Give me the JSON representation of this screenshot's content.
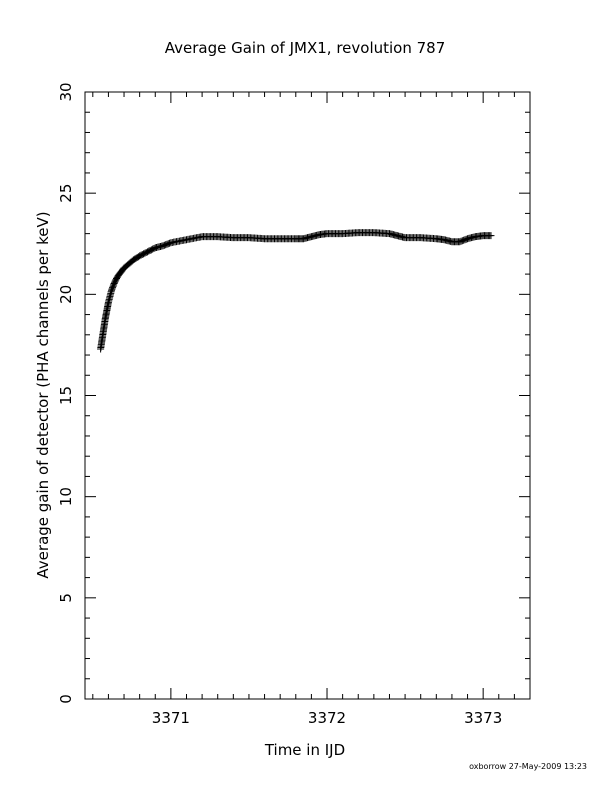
{
  "chart_data": {
    "type": "scatter",
    "title": "Average Gain of JMX1, revolution 787",
    "xlabel": "Time in IJD",
    "ylabel": "Average gain of detector (PHA channels per keV)",
    "xlim": [
      3370.45,
      3373.3
    ],
    "ylim": [
      0,
      30
    ],
    "x_ticks": [
      "3371",
      "3372",
      "3373"
    ],
    "y_ticks": [
      "0",
      "5",
      "10",
      "15",
      "20",
      "25",
      "30"
    ],
    "grid": false,
    "legend": "none",
    "marker": "+",
    "color": "#000000",
    "series": [
      {
        "x": [
          3370.55,
          3370.56,
          3370.57,
          3370.58,
          3370.59,
          3370.6,
          3370.61,
          3370.62,
          3370.63,
          3370.64,
          3370.66,
          3370.68,
          3370.7,
          3370.73,
          3370.76,
          3370.8,
          3370.85,
          3370.9,
          3370.95,
          3371.0,
          3371.1,
          3371.2,
          3371.3,
          3371.4,
          3371.5,
          3371.6,
          3371.7,
          3371.8,
          3371.85,
          3371.9,
          3371.95,
          3372.0,
          3372.1,
          3372.2,
          3372.3,
          3372.4,
          3372.45,
          3372.5,
          3372.6,
          3372.7,
          3372.75,
          3372.8,
          3372.85,
          3372.9,
          3372.95,
          3373.0,
          3373.05
        ],
        "y": [
          17.3,
          17.8,
          18.3,
          18.8,
          19.2,
          19.6,
          19.9,
          20.2,
          20.4,
          20.6,
          20.9,
          21.1,
          21.3,
          21.5,
          21.7,
          21.9,
          22.1,
          22.3,
          22.4,
          22.55,
          22.7,
          22.85,
          22.85,
          22.8,
          22.8,
          22.75,
          22.75,
          22.75,
          22.75,
          22.85,
          22.95,
          23.0,
          23.0,
          23.05,
          23.05,
          23.0,
          22.9,
          22.8,
          22.8,
          22.75,
          22.7,
          22.6,
          22.6,
          22.75,
          22.85,
          22.9,
          22.9
        ]
      }
    ]
  },
  "footer": {
    "stamp": "oxborrow 27-May-2009 13:23"
  }
}
